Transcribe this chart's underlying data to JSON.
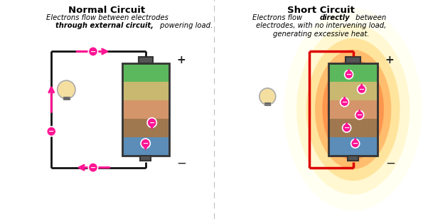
{
  "title_left": "Normal Circuit",
  "sub_left_1": "Electrons flow between electrodes",
  "sub_left_2a": "through external circuit,",
  "sub_left_2b": " powering load.",
  "title_right": "Short Circuit",
  "sub_right_1a": "Electrons flow ",
  "sub_right_1b": "directly",
  "sub_right_1c": " between",
  "sub_right_2": "electrodes, with no intervening load,",
  "sub_right_3": "generating excessive heat.",
  "battery_layers": [
    {
      "color": "#5cb85c"
    },
    {
      "color": "#c8b870"
    },
    {
      "color": "#d4956a"
    },
    {
      "color": "#a07850"
    },
    {
      "color": "#5b8db8"
    }
  ],
  "terminal_color": "#555555",
  "circuit_color": "#111111",
  "arrow_color": "#ff1493",
  "red_color": "#dd0000",
  "divider_color": "#bbbbbb",
  "bulb_color": "#f5dfa0",
  "base_color": "#999999",
  "bg_color": "#ffffff",
  "plus_color": "#222222",
  "lw_circuit": 2.0,
  "lw_red": 2.5
}
